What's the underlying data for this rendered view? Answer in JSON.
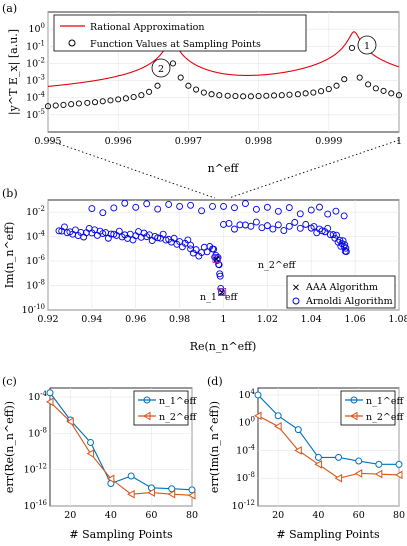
{
  "chart_data": [
    {
      "panel": "(a)",
      "type": "line",
      "ylabel": "|y^T E_x| [a.u.]",
      "xlabel": "n^eff",
      "xlim": [
        0.995,
        1.0
      ],
      "ylim": [
        1e-06,
        10
      ],
      "yscale": "log",
      "xticks": [
        "0.995",
        "0.996",
        "0.997",
        "0.998",
        "0.999",
        "1"
      ],
      "yticks": [
        "10^0",
        "10^-1",
        "10^-2",
        "10^-3",
        "10^-4",
        "10^-5"
      ],
      "legend": {
        "placement": "top-left",
        "entries": [
          "Rational Approximation",
          "Function Values at Sampling Points"
        ]
      },
      "annotations": [
        "1",
        "2"
      ],
      "series": [
        {
          "name": "Rational Approximation",
          "color": "#e8000b",
          "baseline_x": [
            0.995,
            0.9955,
            0.996,
            0.9965,
            0.997,
            0.9975,
            0.998,
            0.9985,
            0.999,
            0.9995,
            1.0
          ],
          "baseline_y": [
            3.2e-05,
            5e-05,
            8e-05,
            0.00016,
            0.00045,
            0.00014,
            0.00013,
            0.00014,
            0.00026,
            0.00024,
            0.00014
          ],
          "peaks": [
            {
              "x": 0.99676,
              "y": 0.25
            },
            {
              "x": 0.99936,
              "y": 0.7
            }
          ],
          "spikes": [
            {
              "x": 0.99601,
              "y": 0.0002
            },
            {
              "x": 0.99712,
              "y": 0.0002
            },
            {
              "x": 0.99842,
              "y": 0.00025
            }
          ]
        },
        {
          "name": "Function Values at Sampling Points",
          "marker": "circle",
          "x": [
            0.995,
            0.99511,
            0.99522,
            0.99533,
            0.99544,
            0.99556,
            0.99567,
            0.99578,
            0.99589,
            0.996,
            0.99611,
            0.99622,
            0.99633,
            0.99644,
            0.99656,
            0.99667,
            0.99678,
            0.99689,
            0.997,
            0.99711,
            0.99722,
            0.99733,
            0.99744,
            0.99756,
            0.99767,
            0.99778,
            0.99789,
            0.998,
            0.99811,
            0.99822,
            0.99833,
            0.99844,
            0.99856,
            0.99867,
            0.99878,
            0.99889,
            0.999,
            0.99911,
            0.99922,
            0.99933,
            0.99944,
            0.99956,
            0.99967,
            0.99978,
            0.99989,
            1.0
          ],
          "y": [
            3.2e-05,
            3.5e-05,
            3.8e-05,
            4.2e-05,
            4.6e-05,
            5e-05,
            5.5e-05,
            6.2e-05,
            7e-05,
            8e-05,
            9.2e-05,
            0.00011,
            0.00014,
            0.00022,
            0.0005,
            0.003,
            0.01,
            0.0015,
            0.0005,
            0.0003,
            0.0002,
            0.00016,
            0.00014,
            0.00013,
            0.000125,
            0.00012,
            0.00012,
            0.000125,
            0.00013,
            0.000135,
            0.00014,
            0.00015,
            0.00016,
            0.00018,
            0.0002,
            0.00024,
            0.00032,
            0.0005,
            0.0012,
            0.08,
            0.0015,
            0.0006,
            0.00035,
            0.00025,
            0.00018,
            0.00014
          ]
        }
      ]
    },
    {
      "panel": "(b)",
      "type": "scatter",
      "xlabel": "Re(n_n^eff)",
      "ylabel": "Im(n_n^eff)",
      "xlim": [
        0.92,
        1.08
      ],
      "ylim": [
        1e-10,
        0.1
      ],
      "yscale": "log",
      "xticks": [
        "0.92",
        "0.94",
        "0.96",
        "0.98",
        "1",
        "1.02",
        "1.04",
        "1.06",
        "1.08"
      ],
      "yticks": [
        "10^-2",
        "10^-4",
        "10^-6",
        "10^-8",
        "10^-10"
      ],
      "legend": {
        "placement": "bottom-right",
        "entries": [
          "AAA Algorithm",
          "Arnoldi Algorithm"
        ]
      },
      "annotations": [
        "n_2^eff",
        "n_1^eff"
      ],
      "series": [
        {
          "name": "AAA Algorithm",
          "marker": "x",
          "color": "#e8000b",
          "x": [
            0.9968,
            0.9994
          ],
          "y": [
            1.5e-06,
            3e-09
          ]
        },
        {
          "name": "Arnoldi Algorithm",
          "marker": "circle",
          "color": "#0000ee",
          "clusters": [
            {
              "description": "main band",
              "x": [
                0.925,
                0.93,
                0.935,
                0.94,
                0.945,
                0.95,
                0.955,
                0.96,
                0.965,
                0.97,
                0.975,
                0.98,
                0.985
              ],
              "y": [
                0.0003,
                0.00025,
                0.00022,
                0.0002,
                0.00018,
                0.00016,
                0.00014,
                0.00012,
                0.0001,
                8e-05,
                6e-05,
                4e-05,
                2e-05
              ]
            },
            {
              "description": "upper arc",
              "x": [
                0.94,
                0.96,
                0.98,
                1.0,
                1.02,
                1.04,
                1.055
              ],
              "y": [
                0.02,
                0.025,
                0.03,
                0.03,
                0.025,
                0.015,
                0.005
              ]
            },
            {
              "description": "right tail",
              "x": [
                1.0,
                1.01,
                1.02,
                1.03,
                1.04,
                1.045,
                1.05,
                1.053,
                1.055,
                1.056
              ],
              "y": [
                0.001,
                0.0009,
                0.0008,
                0.0007,
                0.0005,
                0.0003,
                0.00015,
                5e-05,
                1.5e-05,
                6e-06
              ]
            },
            {
              "description": "descending points",
              "x": [
                0.985,
                0.99,
                0.995,
                0.997,
                0.998,
                0.999
              ],
              "y": [
                1e-05,
                5e-06,
                1e-05,
                1.5e-06,
                5e-07,
                3e-09
              ]
            }
          ]
        }
      ]
    },
    {
      "panel": "(c)",
      "type": "line",
      "xlabel": "# Sampling Points",
      "ylabel": "err(Re(n_n^eff))",
      "xlim": [
        10,
        80
      ],
      "ylim": [
        1e-16,
        0.001
      ],
      "yscale": "log",
      "xticks": [
        "20",
        "40",
        "60",
        "80"
      ],
      "yticks": [
        "10^-4",
        "10^-8",
        "10^-12",
        "10^-16"
      ],
      "legend": {
        "placement": "top-right",
        "entries": [
          "n_1^eff",
          "n_2^eff"
        ]
      },
      "x": [
        10,
        20,
        30,
        40,
        50,
        60,
        70,
        80
      ],
      "series": [
        {
          "name": "n_1^eff",
          "marker": "circle",
          "color": "#0072bd",
          "values": [
            0.0003,
            3e-07,
            1e-09,
            3e-14,
            2e-13,
            1e-14,
            8e-15,
            6e-15
          ]
        },
        {
          "name": "n_2^eff",
          "marker": "triangle-left",
          "color": "#d95319",
          "values": [
            3e-05,
            2e-07,
            6e-11,
            1e-13,
            2e-15,
            3e-15,
            2e-15,
            1.5e-15
          ]
        }
      ]
    },
    {
      "panel": "(d)",
      "type": "line",
      "xlabel": "# Sampling Points",
      "ylabel": "err(Im(n_n^eff))",
      "xlim": [
        10,
        80
      ],
      "ylim": [
        1e-12,
        100000.0
      ],
      "yscale": "log",
      "xticks": [
        "20",
        "40",
        "60",
        "80"
      ],
      "yticks": [
        "10^4",
        "10^0",
        "10^-4",
        "10^-8",
        "10^-12"
      ],
      "legend": {
        "placement": "top-right",
        "entries": [
          "n_1^eff",
          "n_2^eff"
        ]
      },
      "x": [
        10,
        20,
        30,
        40,
        50,
        60,
        70,
        80
      ],
      "series": [
        {
          "name": "n_1^eff",
          "marker": "circle",
          "color": "#0072bd",
          "values": [
            10000.0,
            10.0,
            0.1,
            1e-05,
            1e-05,
            3e-06,
            1e-06,
            1e-06
          ]
        },
        {
          "name": "n_2^eff",
          "marker": "triangle-left",
          "color": "#d95319",
          "values": [
            10.0,
            0.3,
            0.0001,
            1e-06,
            1e-08,
            5e-08,
            4e-08,
            3e-08
          ]
        }
      ]
    }
  ]
}
